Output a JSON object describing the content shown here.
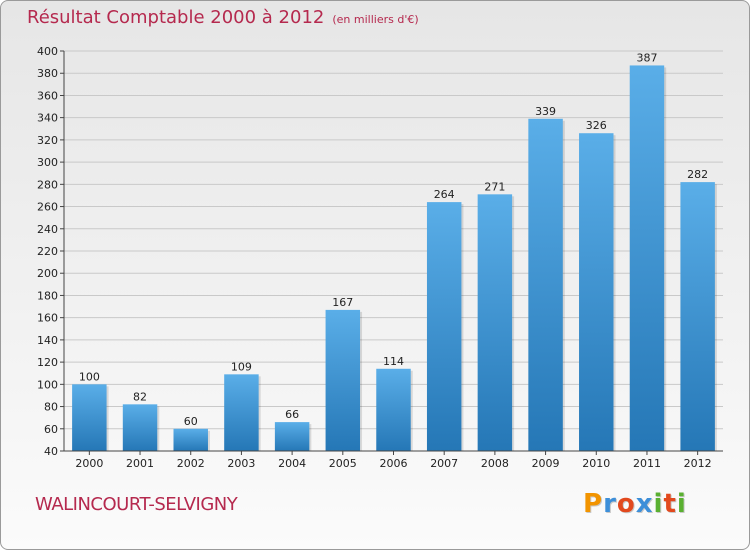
{
  "header": {
    "title": "Résultat Comptable 2000 à 2012",
    "unit": "(en milliers d'€)"
  },
  "footer": {
    "city": "WALINCOURT-SELVIGNY",
    "logo_letters": [
      {
        "ch": "P",
        "color": "#f29400"
      },
      {
        "ch": "r",
        "color": "#3d8fd9"
      },
      {
        "ch": "o",
        "color": "#e2491d"
      },
      {
        "ch": "x",
        "color": "#3d8fd9"
      },
      {
        "ch": "i",
        "color": "#5ab031"
      },
      {
        "ch": "t",
        "color": "#e2491d"
      },
      {
        "ch": "i",
        "color": "#5ab031"
      }
    ]
  },
  "chart_data": {
    "type": "bar",
    "title": "Résultat Comptable 2000 à 2012",
    "subtitle": "(en milliers d'€)",
    "categories": [
      "2000",
      "2001",
      "2002",
      "2003",
      "2004",
      "2005",
      "2006",
      "2007",
      "2008",
      "2009",
      "2010",
      "2011",
      "2012"
    ],
    "values": [
      100,
      82,
      60,
      109,
      66,
      167,
      114,
      264,
      271,
      339,
      326,
      387,
      282
    ],
    "ylim": [
      40,
      400
    ],
    "yticks": [
      40,
      60,
      80,
      100,
      120,
      140,
      160,
      180,
      200,
      220,
      240,
      260,
      280,
      300,
      320,
      340,
      360,
      380,
      400
    ],
    "grid": true,
    "data_labels": true,
    "colors": {
      "bar_top": "#5aaee8",
      "bar_bottom": "#2577b6",
      "text": "#b5294e",
      "grid": "#c9c9c9"
    }
  }
}
